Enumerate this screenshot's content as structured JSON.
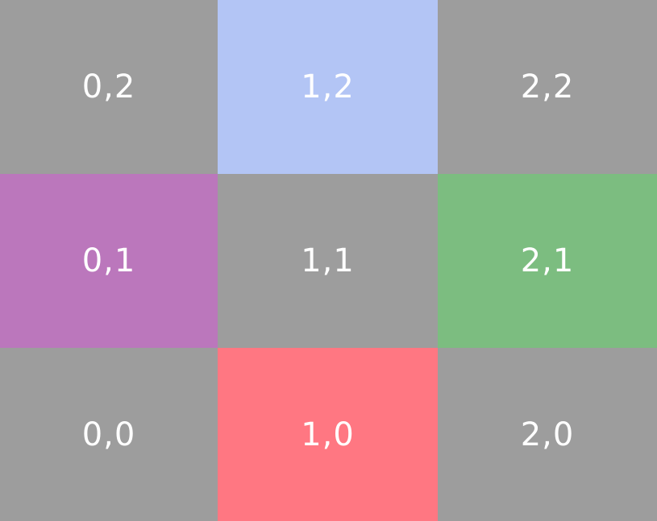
{
  "grid": {
    "rows": [
      [
        {
          "label": "0,2",
          "color": "#9d9d9d"
        },
        {
          "label": "1,2",
          "color": "#b3c5f5"
        },
        {
          "label": "2,2",
          "color": "#9d9d9d"
        }
      ],
      [
        {
          "label": "0,1",
          "color": "#bb77bc"
        },
        {
          "label": "1,1",
          "color": "#9d9d9d"
        },
        {
          "label": "2,1",
          "color": "#7cbd80"
        }
      ],
      [
        {
          "label": "0,0",
          "color": "#9d9d9d"
        },
        {
          "label": "1,0",
          "color": "#ff7782"
        },
        {
          "label": "2,0",
          "color": "#9d9d9d"
        }
      ]
    ]
  }
}
